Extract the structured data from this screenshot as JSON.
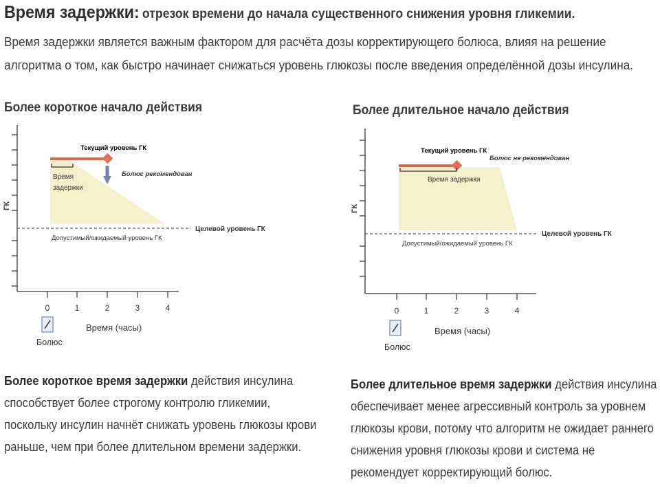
{
  "title": {
    "term": "Время задержки:",
    "definition": "отрезок времени до начала существенного снижения уровня гликемии."
  },
  "intro": "Время задержки является важным фактором для расчёта дозы корректирующего болюса, влияя на решение алгоритма о том, как быстро начинает снижаться уровень глюкозы после введения определённой дозы инсулина.",
  "colors": {
    "line": "#d9694a",
    "marker": "#e07050",
    "fill": "#f6efcc",
    "arrow": "#6f86b0",
    "axis": "#333333"
  },
  "left": {
    "heading": "Более короткое начало действия",
    "chart": {
      "ylabel": "ГК",
      "xlabel": "Время (часы)",
      "ticks": [
        "0",
        "1",
        "2",
        "3",
        "4"
      ],
      "current_label": "Текущий уровень ГК",
      "delay_label_1": "Время",
      "delay_label_2": "задержки",
      "bolus_status": "Болюс рекомендован",
      "target_label": "Целевой уровень ГК",
      "acceptable_label": "Допустимый/ожидаемый уровень ГК",
      "bolus_label": "Болюс"
    },
    "desc_bold": "Более короткое время задержки",
    "desc_rest": "действия инсулина способствует более строгому контролю гликемии, поскольку инсулин начнёт снижать уровень глюкозы крови раньше, чем при более длительном времени задержки."
  },
  "right": {
    "heading": "Более длительное начало действия",
    "chart": {
      "ylabel": "ГК",
      "xlabel": "Время (часы)",
      "ticks": [
        "0",
        "1",
        "2",
        "3",
        "4"
      ],
      "current_label": "Текущий уровень ГК",
      "delay_label": "Время задержки",
      "bolus_status": "Болюс не рекомендован",
      "target_label": "Целевой уровень ГК",
      "acceptable_label": "Допустимый/ожидаемый уровень ГК",
      "bolus_label": "Болюс"
    },
    "desc_bold": "Более длительное время задержки",
    "desc_rest": "действия инсулина обеспечивает менее агрессивный контроль за уровнем глюкозы крови, потому что алгоритм не ожидает раннего снижения уровня глюкозы крови и система не рекомендует корректирующий болюс."
  }
}
